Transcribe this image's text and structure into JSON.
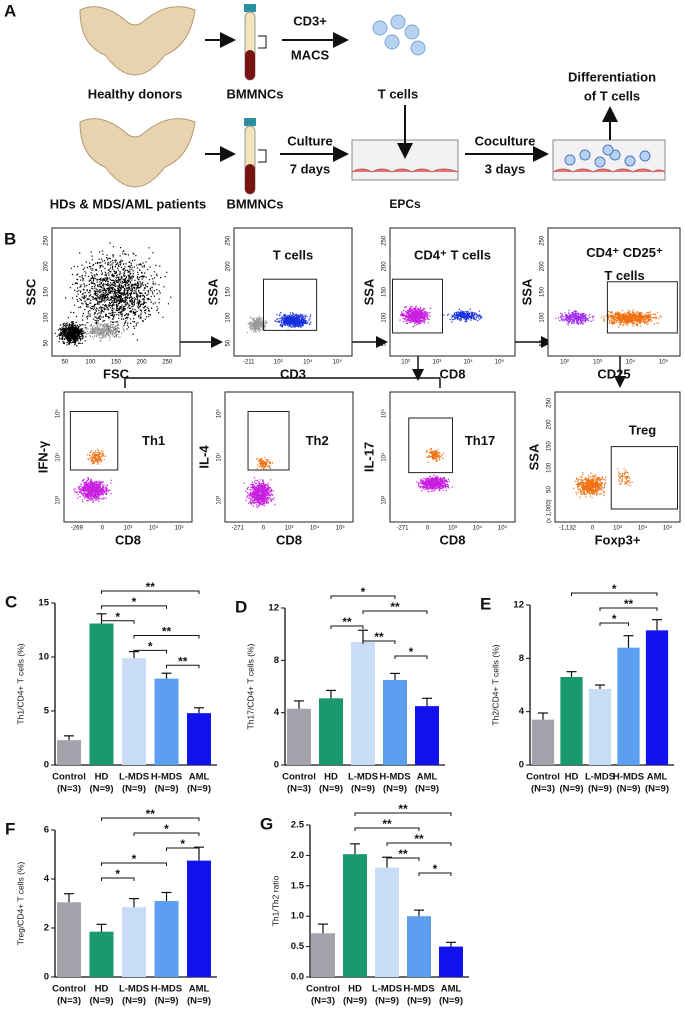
{
  "panel_a": {
    "label": "A",
    "row1": {
      "source": "Healthy donors",
      "sample": "BMMNCs",
      "step_top": "CD3+",
      "step_bottom": "MACS",
      "product": "T cells",
      "result": [
        "Differentiation",
        "of T cells"
      ]
    },
    "row2": {
      "source": "HDs & MDS/AML patients",
      "sample": "BMMNCs",
      "step1": [
        "Culture",
        "7 days"
      ],
      "product": "EPCs",
      "step2": [
        "Coculture",
        "3 days"
      ]
    }
  },
  "panel_b": {
    "label": "B",
    "plots": [
      {
        "ylabel": "SSC",
        "xlabel": "FSC",
        "gate": [],
        "xticks": [
          "50",
          "100",
          "150",
          "200",
          "250"
        ],
        "yticks": [
          "50",
          "100",
          "150",
          "200",
          "250"
        ]
      },
      {
        "ylabel": "SSA",
        "xlabel": "CD3",
        "gate": [
          "T cells"
        ],
        "xticks": [
          "-211",
          "10³",
          "10⁴",
          "10⁵"
        ],
        "yticks": [
          "50",
          "100",
          "150",
          "200",
          "250"
        ]
      },
      {
        "ylabel": "SSA",
        "xlabel": "CD8",
        "gate": [
          "CD4⁺ T cells"
        ],
        "xticks": [
          "10²",
          "10³",
          "10⁴",
          "10⁵"
        ],
        "yticks": [
          "50",
          "100",
          "150",
          "200",
          "250"
        ]
      },
      {
        "ylabel": "SSA",
        "xlabel": "CD25",
        "gate": [
          "CD4⁺ CD25⁺",
          "T cells"
        ],
        "xticks": [
          "10²",
          "10³",
          "10⁴",
          "10⁵"
        ],
        "yticks": [
          "50",
          "100",
          "150",
          "200",
          "250"
        ]
      },
      {
        "ylabel": "IFN-γ",
        "xlabel": "CD8",
        "gate": [
          "Th1"
        ],
        "xticks": [
          "-269",
          "0",
          "10³",
          "10⁴",
          "10⁵"
        ],
        "yticks": [
          "10³",
          "10⁴",
          "10⁵"
        ]
      },
      {
        "ylabel": "IL-4",
        "xlabel": "CD8",
        "gate": [
          "Th2"
        ],
        "xticks": [
          "-271",
          "0",
          "10³",
          "10⁴",
          "10⁵"
        ],
        "yticks": [
          "10³",
          "10⁴",
          "10⁵"
        ]
      },
      {
        "ylabel": "IL-17",
        "xlabel": "CD8",
        "gate": [
          "Th17"
        ],
        "xticks": [
          "-271",
          "0",
          "10³",
          "10⁴",
          "10⁵"
        ],
        "yticks": [
          "10³",
          "10⁴",
          "10⁵"
        ]
      },
      {
        "ylabel": "SSA",
        "xlabel": "Foxp3+",
        "gate": [
          "Treg"
        ],
        "xticks": [
          "-1,132",
          "0",
          "10³",
          "10⁴",
          "10⁵"
        ],
        "yticks": [
          "(x 1,000)",
          "50",
          "100",
          "150",
          "200",
          "250"
        ]
      }
    ]
  },
  "chart_data": [
    {
      "type": "bar",
      "label": "C",
      "y_label": "Th1/CD4+ T cells (%)",
      "categories": [
        "Control",
        "HD",
        "L-MDS",
        "H-MDS",
        "AML"
      ],
      "category_notes": [
        "(N=3)",
        "(N=9)",
        "(N=9)",
        "(N=9)",
        "(N=9)"
      ],
      "colors": [
        "#a3a3ab",
        "#1a9a6c",
        "#c9dcf5",
        "#5c9ef0",
        "#1212ee"
      ],
      "values": [
        2.3,
        13.1,
        9.9,
        8.0,
        4.8
      ],
      "errors": [
        0.4,
        0.9,
        0.6,
        0.5,
        0.5
      ],
      "ylim": [
        0,
        15
      ],
      "yticks": [
        0,
        5,
        10,
        15
      ],
      "comparisons": [
        {
          "pair": [
            1,
            4
          ],
          "label": "**"
        },
        {
          "pair": [
            1,
            3
          ],
          "label": "*"
        },
        {
          "pair": [
            1,
            2
          ],
          "label": "*"
        },
        {
          "pair": [
            2,
            4
          ],
          "label": "**"
        },
        {
          "pair": [
            2,
            3
          ],
          "label": "*"
        },
        {
          "pair": [
            3,
            4
          ],
          "label": "**"
        }
      ]
    },
    {
      "type": "bar",
      "label": "D",
      "y_label": "Th17/CD4+ T cells (%)",
      "categories": [
        "Control",
        "HD",
        "L-MDS",
        "H-MDS",
        "AML"
      ],
      "category_notes": [
        "(N=3)",
        "(N=9)",
        "(N=9)",
        "(N=9)",
        "(N=9)"
      ],
      "colors": [
        "#a3a3ab",
        "#1a9a6c",
        "#c9dcf5",
        "#5c9ef0",
        "#1212ee"
      ],
      "values": [
        4.3,
        5.1,
        9.4,
        6.5,
        4.5
      ],
      "errors": [
        0.6,
        0.6,
        0.9,
        0.5,
        0.6
      ],
      "ylim": [
        0,
        12
      ],
      "yticks": [
        0,
        4,
        8,
        12
      ],
      "comparisons": [
        {
          "pair": [
            1,
            3
          ],
          "label": "*"
        },
        {
          "pair": [
            2,
            4
          ],
          "label": "**"
        },
        {
          "pair": [
            1,
            2
          ],
          "label": "**"
        },
        {
          "pair": [
            2,
            3
          ],
          "label": "**"
        },
        {
          "pair": [
            3,
            4
          ],
          "label": "*"
        }
      ]
    },
    {
      "type": "bar",
      "label": "E",
      "y_label": "Th2/CD4+ T cells (%)",
      "categories": [
        "Control",
        "HD",
        "L-MDS",
        "H-MDS",
        "AML"
      ],
      "category_notes": [
        "(N=3)",
        "(N=9)",
        "(N=9)",
        "(N=9)",
        "(N=9)"
      ],
      "colors": [
        "#a3a3ab",
        "#1a9a6c",
        "#c9dcf5",
        "#5c9ef0",
        "#1212ee"
      ],
      "values": [
        3.4,
        6.6,
        5.7,
        8.8,
        10.1
      ],
      "errors": [
        0.5,
        0.4,
        0.3,
        0.9,
        0.8
      ],
      "ylim": [
        0,
        12
      ],
      "yticks": [
        0,
        4,
        8,
        12
      ],
      "comparisons": [
        {
          "pair": [
            1,
            4
          ],
          "label": "*"
        },
        {
          "pair": [
            2,
            4
          ],
          "label": "**"
        },
        {
          "pair": [
            2,
            3
          ],
          "label": "*"
        }
      ]
    },
    {
      "type": "bar",
      "label": "F",
      "y_label": "Treg/CD4+ T cells (%)",
      "categories": [
        "Control",
        "HD",
        "L-MDS",
        "H-MDS",
        "AML"
      ],
      "category_notes": [
        "(N=3)",
        "(N=9)",
        "(N=9)",
        "(N=9)",
        "(N=9)"
      ],
      "colors": [
        "#a3a3ab",
        "#1a9a6c",
        "#c9dcf5",
        "#5c9ef0",
        "#1212ee"
      ],
      "values": [
        3.05,
        1.85,
        2.85,
        3.1,
        4.75
      ],
      "errors": [
        0.35,
        0.3,
        0.35,
        0.35,
        0.55
      ],
      "ylim": [
        0,
        6
      ],
      "yticks": [
        0,
        2,
        4,
        6
      ],
      "comparisons": [
        {
          "pair": [
            1,
            4
          ],
          "label": "**"
        },
        {
          "pair": [
            2,
            4
          ],
          "label": "*"
        },
        {
          "pair": [
            3,
            4
          ],
          "label": "*"
        },
        {
          "pair": [
            1,
            3
          ],
          "label": "*"
        },
        {
          "pair": [
            1,
            2
          ],
          "label": "*"
        }
      ]
    },
    {
      "type": "bar",
      "label": "G",
      "y_label": "Th1/Th2 ratio",
      "categories": [
        "Control",
        "HD",
        "L-MDS",
        "H-MDS",
        "AML"
      ],
      "category_notes": [
        "(N=3)",
        "(N=9)",
        "(N=9)",
        "(N=9)",
        "(N=9)"
      ],
      "colors": [
        "#a3a3ab",
        "#1a9a6c",
        "#c9dcf5",
        "#5c9ef0",
        "#1212ee"
      ],
      "values": [
        0.72,
        2.02,
        1.8,
        1.0,
        0.5
      ],
      "errors": [
        0.15,
        0.17,
        0.17,
        0.1,
        0.07
      ],
      "ylim": [
        0,
        2.5
      ],
      "yticks": [
        {
          "value": 0,
          "label": "0.0"
        },
        0.5,
        {
          "value": 1,
          "label": "1.0"
        },
        1.5,
        {
          "value": 2,
          "label": "2.0"
        },
        2.5
      ],
      "comparisons": [
        {
          "pair": [
            1,
            4
          ],
          "label": "**"
        },
        {
          "pair": [
            1,
            3
          ],
          "label": "**"
        },
        {
          "pair": [
            2,
            4
          ],
          "label": "**"
        },
        {
          "pair": [
            2,
            3
          ],
          "label": "**"
        },
        {
          "pair": [
            3,
            4
          ],
          "label": "*"
        }
      ]
    }
  ]
}
